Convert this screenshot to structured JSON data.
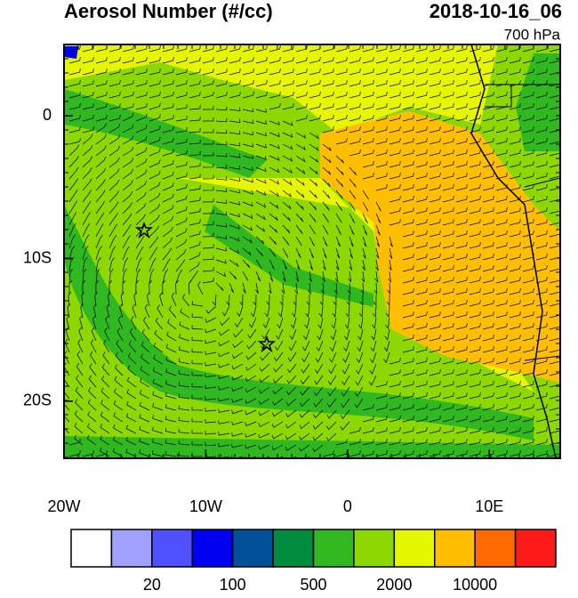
{
  "title": "Aerosol Number (#/cc)",
  "date": "2018-10-16_06",
  "level": "700 hPa",
  "map": {
    "xlim": [
      -20,
      15
    ],
    "ylim": [
      -24,
      5
    ],
    "xticks": [
      {
        "value": -20,
        "label": "20W"
      },
      {
        "value": -10,
        "label": "10W"
      },
      0,
      {
        "value": 10,
        "label": "10E"
      }
    ],
    "yticks": [
      0,
      {
        "value": -10,
        "label": "10S"
      },
      {
        "value": -20,
        "label": "20S"
      }
    ]
  },
  "colorbar": {
    "colors": [
      "#ffffff",
      "#a0a0ff",
      "#5050ff",
      "#0000f0",
      "#00509a",
      "#008c40",
      "#30b820",
      "#8cd800",
      "#e6f500",
      "#ffbf00",
      "#ff6a00",
      "#ff1a1a"
    ],
    "boundary_labels": [
      null,
      "20",
      null,
      "100",
      null,
      "500",
      null,
      "2000",
      null,
      "10000",
      null
    ]
  }
}
